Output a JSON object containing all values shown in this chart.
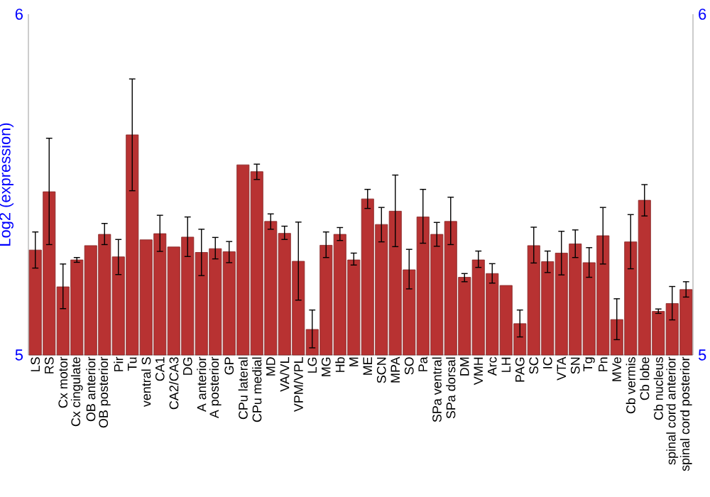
{
  "chart_data": {
    "type": "bar",
    "ylabel": "Log2 (expression)",
    "categories": [
      "LS",
      "RS",
      "Cx motor",
      "Cx cingulate",
      "OB anterior",
      "OB posterior",
      "Pir",
      "Tu",
      "ventral S",
      "CA1",
      "CA2/CA3",
      "DG",
      "A anterior",
      "A posterior",
      "GP",
      "CPu lateral",
      "CPu medial",
      "MD",
      "VA/VL",
      "VPM/VPL",
      "LG",
      "MG",
      "Hb",
      "M",
      "ME",
      "SCN",
      "MPA",
      "SO",
      "Pa",
      "SPa ventral",
      "SPa dorsal",
      "DM",
      "VMH",
      "Arc",
      "LH",
      "PAG",
      "SC",
      "IC",
      "VTA",
      "SN",
      "Tg",
      "Pn",
      "MVe",
      "Cb vermis",
      "Cb lobe",
      "Cb nucleus",
      "spinal cord anterior",
      "spinal cord posterior"
    ],
    "values": [
      5.308,
      5.479,
      5.2,
      5.279,
      5.321,
      5.354,
      5.288,
      5.646,
      5.338,
      5.356,
      5.317,
      5.346,
      5.301,
      5.312,
      5.303,
      5.558,
      5.538,
      5.392,
      5.357,
      5.275,
      5.075,
      5.322,
      5.354,
      5.279,
      5.458,
      5.383,
      5.422,
      5.25,
      5.405,
      5.354,
      5.392,
      5.228,
      5.279,
      5.239,
      5.204,
      5.092,
      5.321,
      5.274,
      5.299,
      5.326,
      5.271,
      5.35,
      5.104,
      5.332,
      5.454,
      5.128,
      5.151,
      5.192
    ],
    "errors": [
      [
        5.255,
        5.361
      ],
      [
        5.324,
        5.636
      ],
      [
        5.136,
        5.267
      ],
      [
        5.272,
        5.286
      ],
      null,
      [
        5.324,
        5.386
      ],
      [
        5.236,
        5.339
      ],
      [
        5.482,
        5.81
      ],
      null,
      [
        5.304,
        5.41
      ],
      null,
      [
        5.289,
        5.405
      ],
      [
        5.233,
        5.369
      ],
      [
        5.282,
        5.345
      ],
      [
        5.271,
        5.333
      ],
      null,
      [
        5.515,
        5.56
      ],
      [
        5.369,
        5.414
      ],
      [
        5.339,
        5.378
      ],
      [
        5.161,
        5.39
      ],
      [
        5.021,
        5.132
      ],
      [
        5.286,
        5.361
      ],
      [
        5.336,
        5.374
      ],
      [
        5.264,
        5.299
      ],
      [
        5.43,
        5.486
      ],
      [
        5.332,
        5.433
      ],
      [
        5.318,
        5.528
      ],
      [
        5.194,
        5.31
      ],
      [
        5.328,
        5.486
      ],
      [
        5.319,
        5.389
      ],
      [
        5.324,
        5.463
      ],
      [
        5.215,
        5.239
      ],
      [
        5.257,
        5.305
      ],
      [
        5.211,
        5.268
      ],
      null,
      [
        5.053,
        5.132
      ],
      [
        5.27,
        5.375
      ],
      [
        5.242,
        5.305
      ],
      [
        5.235,
        5.363
      ],
      [
        5.286,
        5.367
      ],
      [
        5.228,
        5.315
      ],
      [
        5.267,
        5.433
      ],
      [
        5.045,
        5.165
      ],
      [
        5.253,
        5.412
      ],
      [
        5.408,
        5.5
      ],
      [
        5.122,
        5.135
      ],
      [
        5.103,
        5.201
      ],
      [
        5.17,
        5.215
      ]
    ],
    "color": "#b83232",
    "ylim": [
      5,
      6
    ],
    "yticks": [
      5,
      6
    ],
    "y2lim": [
      5,
      6
    ],
    "y2ticks": [
      5,
      6
    ]
  }
}
